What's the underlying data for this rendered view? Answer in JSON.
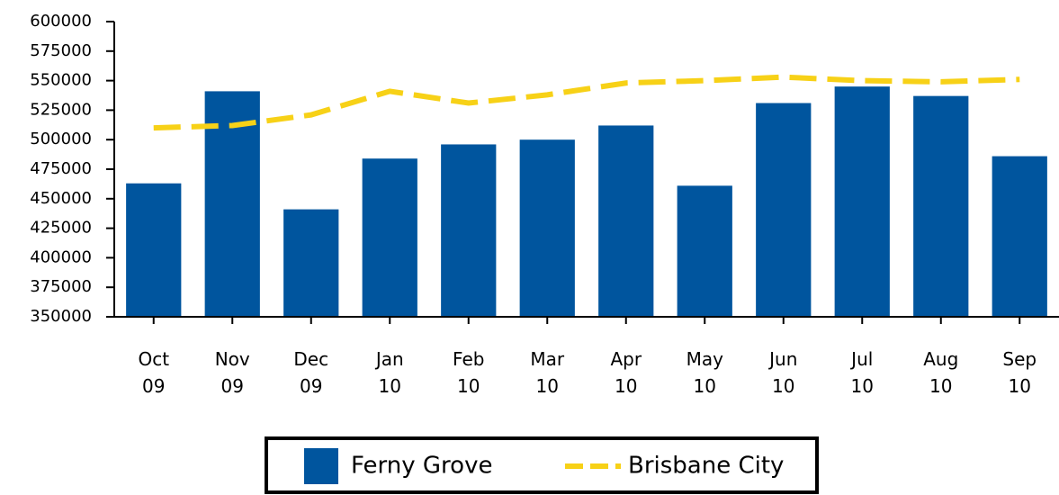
{
  "chart_data": {
    "type": "bar",
    "categories": [
      "Oct 09",
      "Nov 09",
      "Dec 09",
      "Jan 10",
      "Feb 10",
      "Mar 10",
      "Apr 10",
      "May 10",
      "Jun 10",
      "Jul 10",
      "Aug 10",
      "Sep 10"
    ],
    "series": [
      {
        "name": "Ferny Grove",
        "type": "bar",
        "color": "#00559e",
        "values": [
          463000,
          541000,
          441000,
          484000,
          496000,
          500000,
          512000,
          461000,
          531000,
          545000,
          537000,
          486000
        ]
      },
      {
        "name": "Brisbane City",
        "type": "line",
        "color": "#f7d117",
        "values": [
          510000,
          512000,
          521000,
          541000,
          531000,
          538000,
          548000,
          550000,
          553000,
          550000,
          549000,
          551000
        ]
      }
    ],
    "ylim": [
      350000,
      600000
    ],
    "yticks": [
      350000,
      375000,
      400000,
      425000,
      450000,
      475000,
      500000,
      525000,
      550000,
      575000,
      600000
    ],
    "legend": "bottom"
  }
}
